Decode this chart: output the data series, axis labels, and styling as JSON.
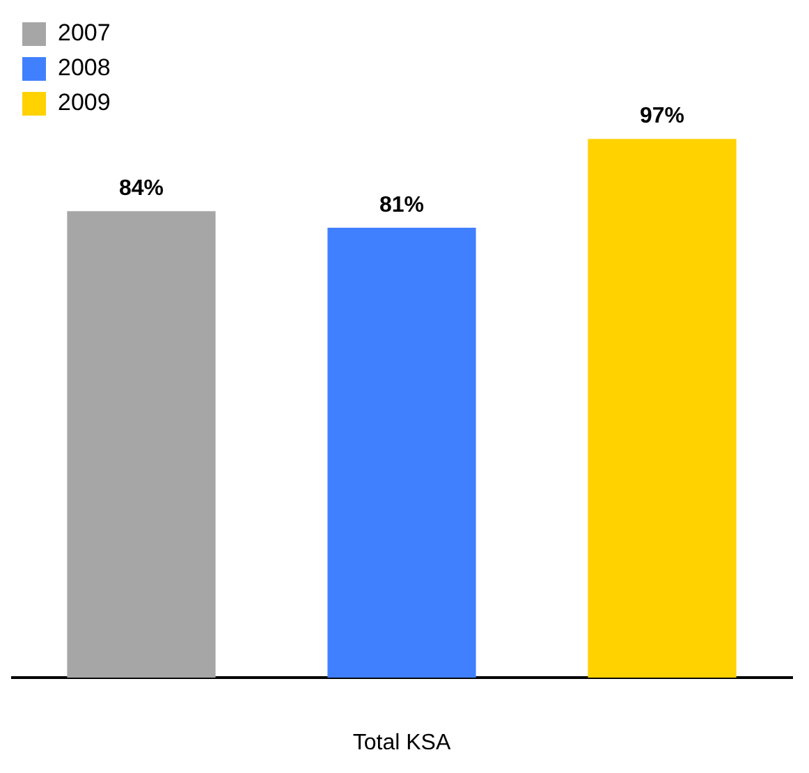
{
  "chart_data": {
    "type": "bar",
    "categories": [
      null,
      null,
      null
    ],
    "xlabel": "Total KSA",
    "legend": "top left",
    "stacked": true,
    "series": [
      {
        "name": "2007",
        "color": "#a6a6a6",
        "values": [
          84,
          null,
          null
        ],
        "value_labels": [
          "84%",
          null,
          null
        ]
      },
      {
        "name": "2008",
        "color": "#4080ff",
        "values": [
          null,
          81,
          null
        ],
        "value_labels": [
          null,
          "81%",
          null
        ]
      },
      {
        "name": "2009",
        "color": "#ffd200",
        "values": [
          null,
          null,
          97
        ],
        "value_labels": [
          null,
          null,
          "97%"
        ]
      }
    ]
  }
}
